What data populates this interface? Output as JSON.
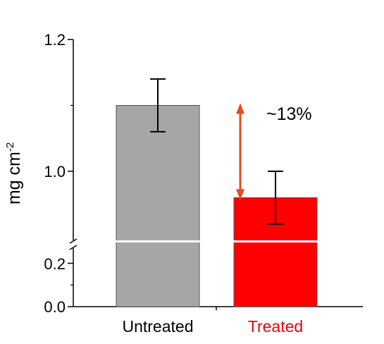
{
  "chart_data": {
    "type": "bar",
    "categories": [
      "Untreated",
      "Treated"
    ],
    "values": [
      1.1,
      0.96
    ],
    "error": [
      0.04,
      0.04
    ],
    "ylabel": "mg cm",
    "ylabel_sup": "-2",
    "yticks": [
      "0.0",
      "0.2",
      "1.0",
      "1.2"
    ],
    "ylim": [
      0,
      1.2
    ],
    "axis_break": true,
    "grid": false,
    "annotation": "~13%",
    "colors": {
      "untreated_fill": "#a6a6a6",
      "treated_fill": "#ff0000",
      "treated_label": "#e8000b",
      "arrow": "#e84a1e",
      "axis": "#000000"
    }
  }
}
